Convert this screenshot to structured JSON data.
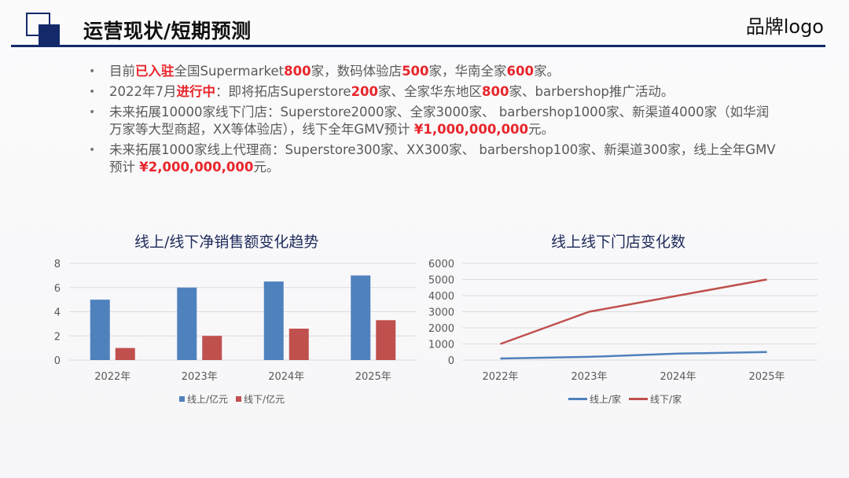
{
  "header": {
    "title": "运营现状/短期预测",
    "brand": "品牌logo",
    "accent_color": "#13296a"
  },
  "bullets": [
    {
      "segments": [
        {
          "text": "目前",
          "highlight": false
        },
        {
          "text": "已入驻",
          "highlight": true
        },
        {
          "text": "全国Supermarket",
          "highlight": false
        },
        {
          "text": "800",
          "highlight": true
        },
        {
          "text": "家，数码体验店",
          "highlight": false
        },
        {
          "text": "500",
          "highlight": true
        },
        {
          "text": "家，华南全家",
          "highlight": false
        },
        {
          "text": "600",
          "highlight": true
        },
        {
          "text": "家。",
          "highlight": false
        }
      ]
    },
    {
      "segments": [
        {
          "text": "2022年7月",
          "highlight": false
        },
        {
          "text": "进行中",
          "highlight": true
        },
        {
          "text": "：即将拓店Superstore",
          "highlight": false
        },
        {
          "text": "200",
          "highlight": true
        },
        {
          "text": "家、全家华东地区",
          "highlight": false
        },
        {
          "text": "800",
          "highlight": true
        },
        {
          "text": "家、barbershop推广活动。",
          "highlight": false
        }
      ]
    },
    {
      "segments": [
        {
          "text": "未来拓展10000家线下门店：Superstore2000家、全家3000家、 barbershop1000家、新渠道4000家（如华润万家等大型商超，XX等体验店），线下全年GMV预计 ",
          "highlight": false
        },
        {
          "text": "¥1,000,000,000",
          "highlight": true
        },
        {
          "text": "元。",
          "highlight": false
        }
      ]
    },
    {
      "segments": [
        {
          "text": "未来拓展1000家线上代理商：Superstore300家、XX300家、 barbershop100家、新渠道300家，线上全年GMV预计 ",
          "highlight": false
        },
        {
          "text": "¥2,000,000,000",
          "highlight": true
        },
        {
          "text": "元。",
          "highlight": false
        }
      ]
    }
  ],
  "colors": {
    "highlight": "#e8262c",
    "online": "#4f81bd",
    "offline": "#c0504d",
    "grid": "#dcdcdc",
    "axis_text": "#595959"
  },
  "chart_data": [
    {
      "type": "bar",
      "title": "线上/线下净销售额变化趋势",
      "categories": [
        "2022年",
        "2023年",
        "2024年",
        "2025年"
      ],
      "series": [
        {
          "name": "线上/亿元",
          "values": [
            5,
            6,
            6.5,
            7
          ],
          "color": "#4f81bd"
        },
        {
          "name": "线下/亿元",
          "values": [
            1,
            2,
            2.6,
            3.3
          ],
          "color": "#c0504d"
        }
      ],
      "xlabel": "",
      "ylabel": "",
      "ylim": [
        0,
        8
      ],
      "yticks": [
        0,
        2,
        4,
        6,
        8
      ],
      "grid": true,
      "legend_position": "bottom"
    },
    {
      "type": "line",
      "title": "线上线下门店变化数",
      "categories": [
        "2022年",
        "2023年",
        "2024年",
        "2025年"
      ],
      "series": [
        {
          "name": "线上/家",
          "values": [
            100,
            200,
            400,
            500
          ],
          "color": "#4f81bd"
        },
        {
          "name": "线下/家",
          "values": [
            1000,
            3000,
            4000,
            5000
          ],
          "color": "#c0504d"
        }
      ],
      "xlabel": "",
      "ylabel": "",
      "ylim": [
        0,
        6000
      ],
      "yticks": [
        0,
        1000,
        2000,
        3000,
        4000,
        5000,
        6000
      ],
      "grid": true,
      "legend_position": "bottom"
    }
  ]
}
